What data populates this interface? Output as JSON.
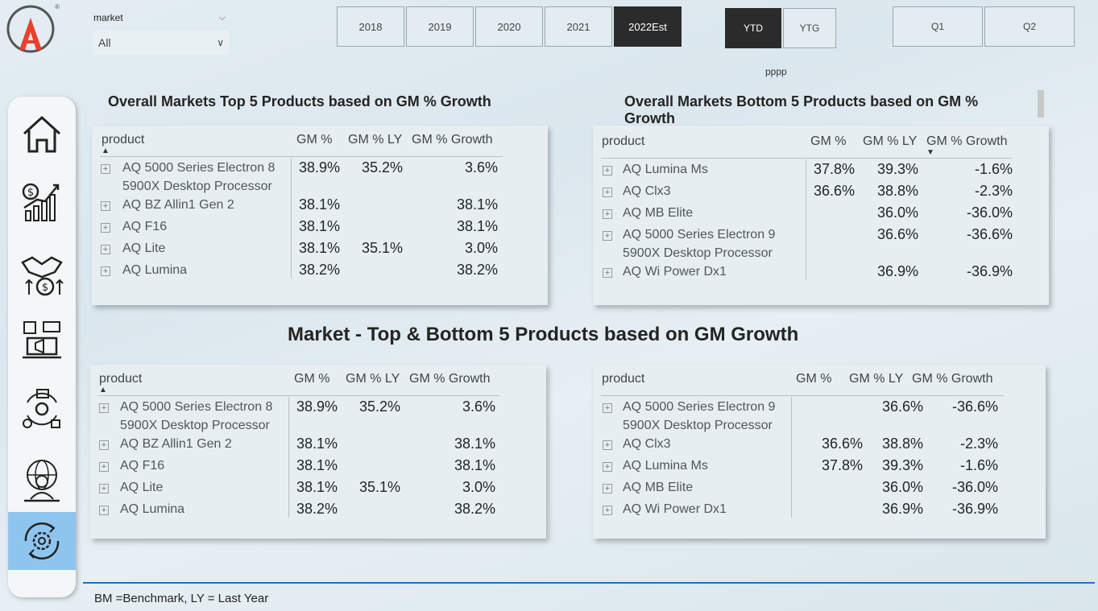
{
  "logo": {
    "registered_mark": "®"
  },
  "market_filter": {
    "label": "market",
    "value": "All"
  },
  "years": [
    {
      "label": "2018",
      "active": false
    },
    {
      "label": "2019",
      "active": false
    },
    {
      "label": "2020",
      "active": false
    },
    {
      "label": "2021",
      "active": false
    },
    {
      "label": "2022Est",
      "active": true
    }
  ],
  "period": [
    {
      "label": "YTD",
      "active": true
    },
    {
      "label": "YTG",
      "active": false
    }
  ],
  "quarters": [
    {
      "label": "Q1",
      "active": false
    },
    {
      "label": "Q2",
      "active": false
    }
  ],
  "pppp_label": "pppp",
  "sidebar": {
    "items": [
      {
        "name": "home-icon"
      },
      {
        "name": "finance-growth-icon"
      },
      {
        "name": "sales-deal-icon"
      },
      {
        "name": "marketing-icon"
      },
      {
        "name": "supply-chain-icon"
      },
      {
        "name": "executive-globe-icon"
      },
      {
        "name": "settings-cycle-icon",
        "active": true
      }
    ]
  },
  "titles": {
    "top5_overall": "Overall Markets Top 5 Products based on GM % Growth",
    "bottom5_overall": "Overall Markets Bottom 5 Products based on GM % Growth",
    "market_section": "Market - Top & Bottom 5 Products based on GM Growth"
  },
  "columns": {
    "product": "product",
    "gm": "GM %",
    "gm_ly": "GM % LY",
    "growth": "GM % Growth"
  },
  "tables": {
    "top_overall": [
      {
        "product": [
          "AQ 5000 Series Electron 8",
          "5900X Desktop Processor"
        ],
        "gm": "38.9%",
        "gm_ly": "35.2%",
        "growth": "3.6%"
      },
      {
        "product": [
          "AQ BZ Allin1 Gen 2"
        ],
        "gm": "38.1%",
        "gm_ly": "",
        "growth": "38.1%"
      },
      {
        "product": [
          "AQ F16"
        ],
        "gm": "38.1%",
        "gm_ly": "",
        "growth": "38.1%"
      },
      {
        "product": [
          "AQ Lite"
        ],
        "gm": "38.1%",
        "gm_ly": "35.1%",
        "growth": "3.0%"
      },
      {
        "product": [
          "AQ Lumina"
        ],
        "gm": "38.2%",
        "gm_ly": "",
        "growth": "38.2%"
      }
    ],
    "bottom_overall": [
      {
        "product": [
          "AQ Lumina Ms"
        ],
        "gm": "37.8%",
        "gm_ly": "39.3%",
        "growth": "-1.6%"
      },
      {
        "product": [
          "AQ Clx3"
        ],
        "gm": "36.6%",
        "gm_ly": "38.8%",
        "growth": "-2.3%"
      },
      {
        "product": [
          "AQ MB Elite"
        ],
        "gm": "",
        "gm_ly": "36.0%",
        "growth": "-36.0%"
      },
      {
        "product": [
          "AQ 5000 Series Electron 9",
          "5900X Desktop Processor"
        ],
        "gm": "",
        "gm_ly": "36.6%",
        "growth": "-36.6%"
      },
      {
        "product": [
          "AQ Wi Power Dx1"
        ],
        "gm": "",
        "gm_ly": "36.9%",
        "growth": "-36.9%"
      }
    ],
    "top_market": [
      {
        "product": [
          "AQ 5000 Series Electron 8",
          "5900X Desktop Processor"
        ],
        "gm": "38.9%",
        "gm_ly": "35.2%",
        "growth": "3.6%"
      },
      {
        "product": [
          "AQ BZ Allin1 Gen 2"
        ],
        "gm": "38.1%",
        "gm_ly": "",
        "growth": "38.1%"
      },
      {
        "product": [
          "AQ F16"
        ],
        "gm": "38.1%",
        "gm_ly": "",
        "growth": "38.1%"
      },
      {
        "product": [
          "AQ Lite"
        ],
        "gm": "38.1%",
        "gm_ly": "35.1%",
        "growth": "3.0%"
      },
      {
        "product": [
          "AQ Lumina"
        ],
        "gm": "38.2%",
        "gm_ly": "",
        "growth": "38.2%"
      }
    ],
    "bottom_market": [
      {
        "product": [
          "AQ 5000 Series Electron 9",
          "5900X Desktop Processor"
        ],
        "gm": "",
        "gm_ly": "36.6%",
        "growth": "-36.6%"
      },
      {
        "product": [
          "AQ Clx3"
        ],
        "gm": "36.6%",
        "gm_ly": "38.8%",
        "growth": "-2.3%"
      },
      {
        "product": [
          "AQ Lumina Ms"
        ],
        "gm": "37.8%",
        "gm_ly": "39.3%",
        "growth": "-1.6%"
      },
      {
        "product": [
          "AQ MB Elite"
        ],
        "gm": "",
        "gm_ly": "36.0%",
        "growth": "-36.0%"
      },
      {
        "product": [
          "AQ Wi Power Dx1"
        ],
        "gm": "",
        "gm_ly": "36.9%",
        "growth": "-36.9%"
      }
    ]
  },
  "footnote": "BM =Benchmark, LY = Last Year",
  "colors": {
    "active_tile": "#2b2b2b",
    "accent_line": "#1f6fc5",
    "active_nav": "#8ec5ef",
    "logo_red": "#e8412c"
  }
}
